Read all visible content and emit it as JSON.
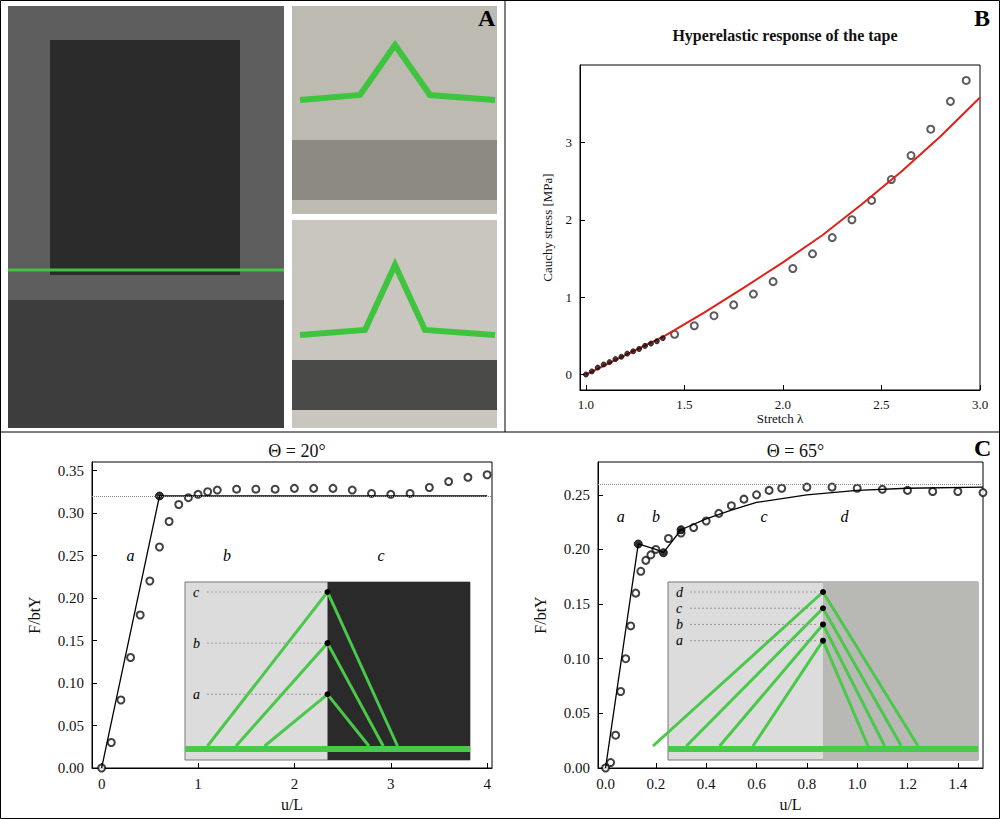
{
  "panels": [
    "A",
    "B",
    "C"
  ],
  "chart_data": [
    {
      "type": "scatter",
      "title": "Hyperelastic response of the tape",
      "x_label": "Stretch λ",
      "y_label": "Cauchy stress [MPa]",
      "xlim": [
        0.97,
        3.0
      ],
      "xticks": [
        {
          "value": 1,
          "label": "1.0"
        },
        1.5,
        {
          "value": 2,
          "label": "2.0"
        },
        2.5,
        {
          "value": 3,
          "label": "3.0"
        }
      ],
      "ylim": [
        -0.2,
        4.0
      ],
      "yticks": [
        0,
        1,
        2,
        3
      ],
      "grid": false,
      "series": [
        {
          "type": "scatter",
          "marker": "circle",
          "color": "#1a0a0a",
          "x": [
            1.0,
            1.03,
            1.06,
            1.09,
            1.12,
            1.15,
            1.18,
            1.21,
            1.24,
            1.27,
            1.3,
            1.33,
            1.36,
            1.39
          ],
          "values": [
            0,
            0.04,
            0.09,
            0.13,
            0.16,
            0.2,
            0.23,
            0.27,
            0.3,
            0.33,
            0.37,
            0.4,
            0.43,
            0.47
          ]
        },
        {
          "type": "scatter",
          "marker": "open_circle",
          "color": "#333333",
          "x": [
            1.45,
            1.55,
            1.65,
            1.75,
            1.85,
            1.95,
            2.05,
            2.15,
            2.25,
            2.35,
            2.45,
            2.55,
            2.65,
            2.75,
            2.85,
            2.93
          ],
          "values": [
            0.52,
            0.63,
            0.76,
            0.9,
            1.04,
            1.2,
            1.37,
            1.56,
            1.77,
            2.0,
            2.25,
            2.52,
            2.83,
            3.17,
            3.53,
            3.8
          ]
        },
        {
          "type": "line",
          "marker": "none",
          "line_style": "solid",
          "color": "#e0201a",
          "x": [
            1.0,
            1.2,
            1.4,
            1.6,
            1.8,
            2.0,
            2.2,
            2.4,
            2.6,
            2.8,
            3.0
          ],
          "values": [
            0,
            0.25,
            0.5,
            0.8,
            1.12,
            1.45,
            1.8,
            2.2,
            2.62,
            3.08,
            3.58
          ]
        }
      ]
    },
    {
      "type": "scatter",
      "title": "Θ = 20°",
      "x_label": "u/L",
      "y_label": "F/btY",
      "xlim": [
        -0.1,
        4.05
      ],
      "xticks": [
        0,
        1,
        2,
        3,
        4
      ],
      "ylim": [
        0,
        0.36
      ],
      "yticks": [
        {
          "value": 0,
          "label": "0.00"
        },
        0.05,
        {
          "value": 0.1,
          "label": "0.10"
        },
        0.15,
        {
          "value": 0.2,
          "label": "0.20"
        },
        0.25,
        {
          "value": 0.3,
          "label": "0.30"
        },
        0.35
      ],
      "grid": false,
      "plateau": 0.32,
      "series": [
        {
          "type": "scatter",
          "marker": "open_circle",
          "color": "#111111",
          "x": [
            0,
            0.1,
            0.2,
            0.3,
            0.4,
            0.5,
            0.6,
            0.7,
            0.8,
            0.9,
            1.0,
            1.1,
            1.2,
            1.4,
            1.6,
            1.8,
            2.0,
            2.2,
            2.4,
            2.6,
            2.8,
            3.0,
            3.2,
            3.4,
            3.6,
            3.8,
            4.0
          ],
          "values": [
            0,
            0.03,
            0.08,
            0.13,
            0.18,
            0.22,
            0.26,
            0.29,
            0.31,
            0.318,
            0.322,
            0.325,
            0.327,
            0.328,
            0.328,
            0.328,
            0.329,
            0.329,
            0.329,
            0.327,
            0.323,
            0.322,
            0.323,
            0.33,
            0.337,
            0.342,
            0.345
          ]
        },
        {
          "type": "line",
          "marker": "none",
          "line_style": "solid",
          "color": "#000000",
          "x": [
            0,
            0.6,
            4.0
          ],
          "values": [
            0,
            0.32,
            0.32
          ]
        },
        {
          "type": "scatter",
          "marker": "circle",
          "color": "#000000",
          "x": [
            0.6
          ],
          "values": [
            0.32
          ]
        }
      ],
      "annotations": [
        {
          "text": "a",
          "x": 0.3,
          "y": 0.25
        },
        {
          "text": "b",
          "x": 1.3,
          "y": 0.25
        },
        {
          "text": "c",
          "x": 2.9,
          "y": 0.25
        }
      ],
      "inset_labels": [
        "c",
        "b",
        "a"
      ]
    },
    {
      "type": "scatter",
      "title": "Θ = 65°",
      "x_label": "u/L",
      "y_label": "F/btY",
      "xlim": [
        -0.03,
        1.5
      ],
      "xticks": [
        {
          "value": 0,
          "label": "0.0"
        },
        0.2,
        0.4,
        0.6,
        0.8,
        {
          "value": 1,
          "label": "1.0"
        },
        1.2,
        1.4
      ],
      "ylim": [
        0,
        0.28
      ],
      "yticks": [
        {
          "value": 0,
          "label": "0.00"
        },
        0.05,
        {
          "value": 0.1,
          "label": "0.10"
        },
        0.15,
        {
          "value": 0.2,
          "label": "0.20"
        },
        0.25
      ],
      "grid": false,
      "plateau": 0.257,
      "series": [
        {
          "type": "scatter",
          "marker": "open_circle",
          "color": "#111111",
          "x": [
            0,
            0.02,
            0.04,
            0.06,
            0.08,
            0.1,
            0.12,
            0.14,
            0.16,
            0.18,
            0.2,
            0.25,
            0.3,
            0.35,
            0.4,
            0.45,
            0.5,
            0.55,
            0.6,
            0.65,
            0.7,
            0.8,
            0.9,
            1.0,
            1.1,
            1.2,
            1.3,
            1.4,
            1.5
          ],
          "values": [
            0,
            0.005,
            0.03,
            0.07,
            0.1,
            0.13,
            0.16,
            0.18,
            0.19,
            0.195,
            0.2,
            0.21,
            0.215,
            0.22,
            0.226,
            0.233,
            0.24,
            0.246,
            0.25,
            0.254,
            0.256,
            0.257,
            0.257,
            0.256,
            0.255,
            0.254,
            0.253,
            0.253,
            0.252
          ]
        },
        {
          "type": "line",
          "marker": "none",
          "line_style": "solid",
          "color": "#000000",
          "x": [
            0,
            0.13,
            0.2,
            0.23,
            0.3,
            0.4,
            0.5,
            0.6,
            0.8,
            1.0,
            1.2,
            1.5
          ],
          "values": [
            0,
            0.205,
            0.2,
            0.197,
            0.218,
            0.228,
            0.236,
            0.243,
            0.25,
            0.254,
            0.256,
            0.257
          ]
        },
        {
          "type": "scatter",
          "marker": "circle",
          "color": "#000000",
          "x": [
            0.13,
            0.23,
            0.3
          ],
          "values": [
            0.205,
            0.197,
            0.218
          ]
        }
      ],
      "annotations": [
        {
          "text": "a",
          "x": 0.06,
          "y": 0.23
        },
        {
          "text": "b",
          "x": 0.2,
          "y": 0.23
        },
        {
          "text": "c",
          "x": 0.63,
          "y": 0.23
        },
        {
          "text": "d",
          "x": 0.95,
          "y": 0.23
        }
      ],
      "inset_labels": [
        "d",
        "c",
        "b",
        "a"
      ]
    }
  ]
}
